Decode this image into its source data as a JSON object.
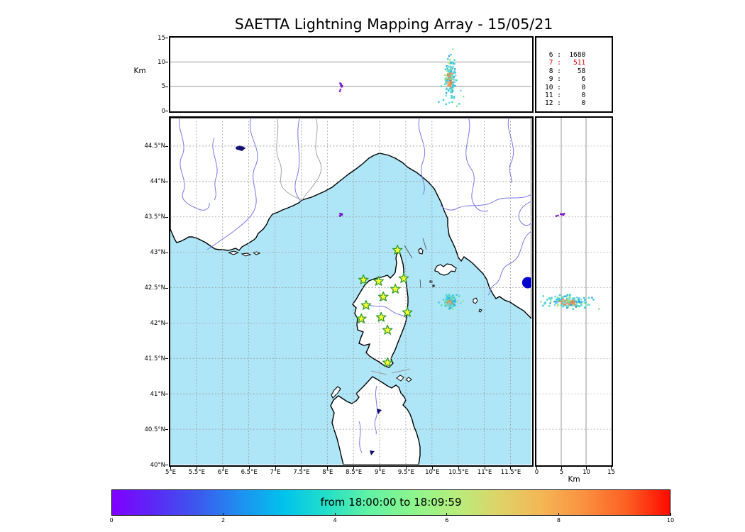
{
  "title": "SAETTA Lightning Mapping Array - 15/05/21",
  "top_panel": {
    "ylabel": "Km",
    "yticks": [
      {
        "label": "0",
        "alt": 0
      },
      {
        "label": "5",
        "alt": 5
      },
      {
        "label": "10",
        "alt": 10
      },
      {
        "label": "15",
        "alt": 15
      }
    ],
    "gridline_alts": [
      5,
      10
    ]
  },
  "station_stats": {
    "rows": [
      {
        "station": "6",
        "count": "1680",
        "highlight": false
      },
      {
        "station": "7",
        "count": "511",
        "highlight": true
      },
      {
        "station": "8",
        "count": "58",
        "highlight": false
      },
      {
        "station": "9",
        "count": "6",
        "highlight": false
      },
      {
        "station": "10",
        "count": "0",
        "highlight": false
      },
      {
        "station": "11",
        "count": "0",
        "highlight": false
      },
      {
        "station": "12",
        "count": "0",
        "highlight": false
      }
    ]
  },
  "map_panel": {
    "lon_ticks": [
      {
        "label": "5°E",
        "lon": 5
      },
      {
        "label": "5.5°E",
        "lon": 5.5
      },
      {
        "label": "6°E",
        "lon": 6
      },
      {
        "label": "6.5°E",
        "lon": 6.5
      },
      {
        "label": "7°E",
        "lon": 7
      },
      {
        "label": "7.5°E",
        "lon": 7.5
      },
      {
        "label": "8°E",
        "lon": 8
      },
      {
        "label": "8.5°E",
        "lon": 8.5
      },
      {
        "label": "9°E",
        "lon": 9
      },
      {
        "label": "9.5°E",
        "lon": 9.5
      },
      {
        "label": "10°E",
        "lon": 10
      },
      {
        "label": "10.5°E",
        "lon": 10.5
      },
      {
        "label": "11°E",
        "lon": 11
      },
      {
        "label": "11.5°E",
        "lon": 11.5
      }
    ],
    "lat_ticks": [
      {
        "label": "44.5°N",
        "lat": 44.5
      },
      {
        "label": "44°N",
        "lat": 44
      },
      {
        "label": "43.5°N",
        "lat": 43.5
      },
      {
        "label": "43°N",
        "lat": 43
      },
      {
        "label": "42.5°N",
        "lat": 42.5
      },
      {
        "label": "42°N",
        "lat": 42
      },
      {
        "label": "41.5°N",
        "lat": 41.5
      },
      {
        "label": "41°N",
        "lat": 41
      },
      {
        "label": "40.5°N",
        "lat": 40.5
      },
      {
        "label": "40°N",
        "lat": 40
      }
    ]
  },
  "right_panel": {
    "xlabel": "Km",
    "xticks": [
      {
        "label": "0",
        "alt": 0
      },
      {
        "label": "5",
        "alt": 5
      },
      {
        "label": "10",
        "alt": 10
      },
      {
        "label": "15",
        "alt": 15
      }
    ],
    "gridline_alts": [
      5,
      10
    ]
  },
  "colorbar": {
    "label": "from 18:00:00 to 18:09:59",
    "ticks": [
      "0",
      "2",
      "4",
      "6",
      "8",
      "10"
    ],
    "gradient": [
      "#7F00FF",
      "#5A2AF5",
      "#3C59EE",
      "#1E90F0",
      "#00C3EC",
      "#23DFC8",
      "#62F2A4",
      "#8CF58C",
      "#B5EE7D",
      "#DDD468",
      "#F4B656",
      "#FA9140",
      "#FC5F22",
      "#FF0A00"
    ]
  },
  "colors": {
    "sea": "#AEE6F7",
    "land": "#FFFFFF",
    "coast": "#000000",
    "river": "#7878E8",
    "border_line": "#999999",
    "grid": "#999999",
    "panel_grid": "#8a8a8a",
    "lake": "#10106E",
    "star_fill": "#FFFF2E",
    "star_edge": "#2E9B2E",
    "stats_highlight": "#E00000",
    "marker_blue": "#0000CC"
  },
  "chart_data": {
    "type": "scatter",
    "description": "Lightning Mapping Array VHF sources: altitude vs longitude (top), plan-view map (center), altitude vs latitude (right); point color = time within the 10-minute window",
    "time_window": {
      "start": "18:00:00",
      "end": "18:09:59",
      "colorbar_ticks_minutes": [
        0,
        2,
        4,
        6,
        8,
        10
      ]
    },
    "axes": {
      "lon_range": [
        5.0,
        11.9
      ],
      "lat_range": [
        40.0,
        44.9
      ],
      "alt_range_km": [
        0,
        15
      ]
    },
    "min_station_counts": {
      "6": 1680,
      "7": 511,
      "8": 58,
      "9": 6,
      "10": 0,
      "11": 0,
      "12": 0
    },
    "stations_lon_lat": [
      [
        9.34,
        43.03
      ],
      [
        8.69,
        42.61
      ],
      [
        8.98,
        42.59
      ],
      [
        9.46,
        42.63
      ],
      [
        9.3,
        42.48
      ],
      [
        9.07,
        42.37
      ],
      [
        8.74,
        42.25
      ],
      [
        9.53,
        42.15
      ],
      [
        8.65,
        42.06
      ],
      [
        9.03,
        42.08
      ],
      [
        9.15,
        41.9
      ],
      [
        9.15,
        41.44
      ]
    ],
    "main_cluster": {
      "name": "storm-cell-tyrrhenian",
      "count": 165,
      "seed": 20210515,
      "lon_center": 10.345,
      "lon_sd": 0.048,
      "lat_center": 42.3,
      "lat_sd": 0.042,
      "alt_center_km": 6.4,
      "alt_sd_km": 1.9,
      "alt_clamp_km": [
        1.0,
        11.2
      ],
      "core_color": "#F28C44",
      "core_alt_band_km": [
        4.7,
        7.7
      ],
      "palette": [
        [
          "#3BC8E0",
          0.36
        ],
        [
          "#67D9EC",
          0.15
        ],
        [
          "#46DDBB",
          0.16
        ],
        [
          "#8FE98A",
          0.12
        ],
        [
          "#C9ED6E",
          0.08
        ],
        [
          "#3B9BE2",
          0.13
        ]
      ]
    },
    "small_flash": {
      "name": "flash-ligurian-sea",
      "colors": [
        "#7B16D8",
        "#8E1EE6",
        "#6A10C4"
      ],
      "points_lon_lat_alt": [
        [
          8.245,
          43.545,
          5.6
        ],
        [
          8.258,
          43.537,
          5.2
        ],
        [
          8.262,
          43.528,
          5.45
        ],
        [
          8.275,
          43.54,
          4.9
        ],
        [
          8.252,
          43.518,
          4.35
        ],
        [
          8.283,
          43.533,
          5.1
        ],
        [
          8.24,
          43.512,
          4.0
        ]
      ]
    },
    "outliers_lon_lat_alt_color": [
      [
        10.36,
        42.33,
        11.5,
        "#3BC8E0"
      ],
      [
        10.33,
        42.27,
        1.6,
        "#67D9EC"
      ],
      [
        10.42,
        42.24,
        2.6,
        "#46DDBB"
      ],
      [
        10.27,
        42.36,
        3.1,
        "#67D9EC"
      ],
      [
        10.48,
        42.3,
        0.9,
        "#8FE98A"
      ],
      [
        10.22,
        42.33,
        2.2,
        "#3BC8E0"
      ],
      [
        10.55,
        42.28,
        4.1,
        "#67D9EC"
      ],
      [
        10.18,
        42.25,
        5.0,
        "#46DDBB"
      ],
      [
        10.4,
        42.2,
        12.6,
        "#8FE98A"
      ],
      [
        10.52,
        42.38,
        1.4,
        "#46DDBB"
      ],
      [
        10.6,
        42.31,
        2.9,
        "#8FE98A"
      ],
      [
        10.13,
        42.29,
        1.8,
        "#3BC8E0"
      ]
    ],
    "map_marker": {
      "lon": 11.83,
      "lat": 42.57,
      "color": "#0000CC",
      "radius_px": 8
    }
  }
}
